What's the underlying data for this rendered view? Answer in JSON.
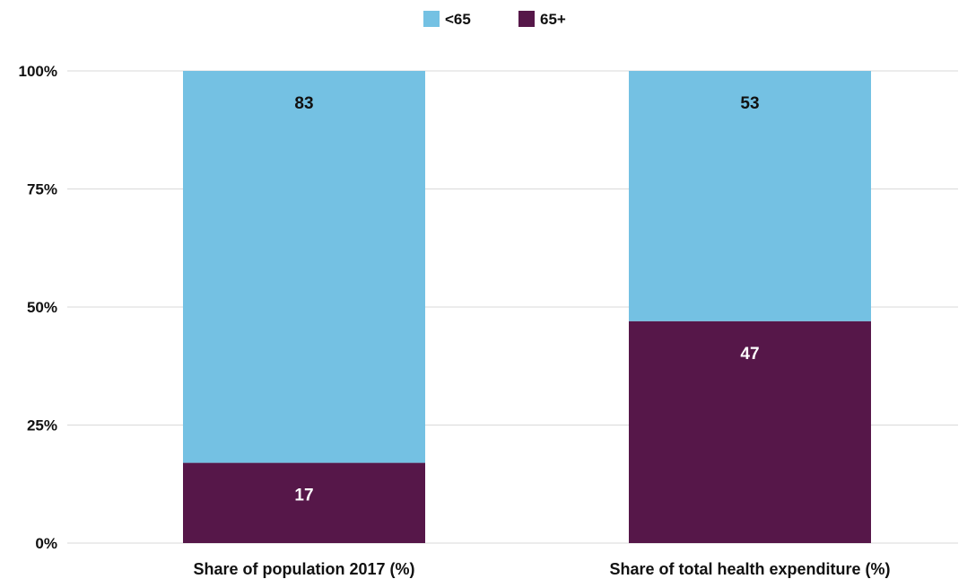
{
  "chart_data": {
    "type": "bar",
    "stacked": true,
    "title": "",
    "xlabel": "",
    "ylabel": "",
    "categories": [
      "Share of population 2017 (%)",
      "Share of total health expenditure (%)"
    ],
    "series": [
      {
        "name": "65+",
        "values": [
          17,
          47
        ],
        "color": "#561749",
        "label_color": "#ffffff"
      },
      {
        "name": "<65",
        "values": [
          83,
          53
        ],
        "color": "#74c1e3",
        "label_color": "#111111"
      }
    ],
    "legend_order": [
      "<65",
      "65+"
    ],
    "legend_position": "top-center",
    "ylim": [
      0,
      100
    ],
    "yticks": [
      0,
      25,
      50,
      75,
      100
    ],
    "ytick_labels": [
      "0%",
      "25%",
      "50%",
      "75%",
      "100%"
    ],
    "grid": true,
    "grid_color": "#d9d9d9"
  }
}
